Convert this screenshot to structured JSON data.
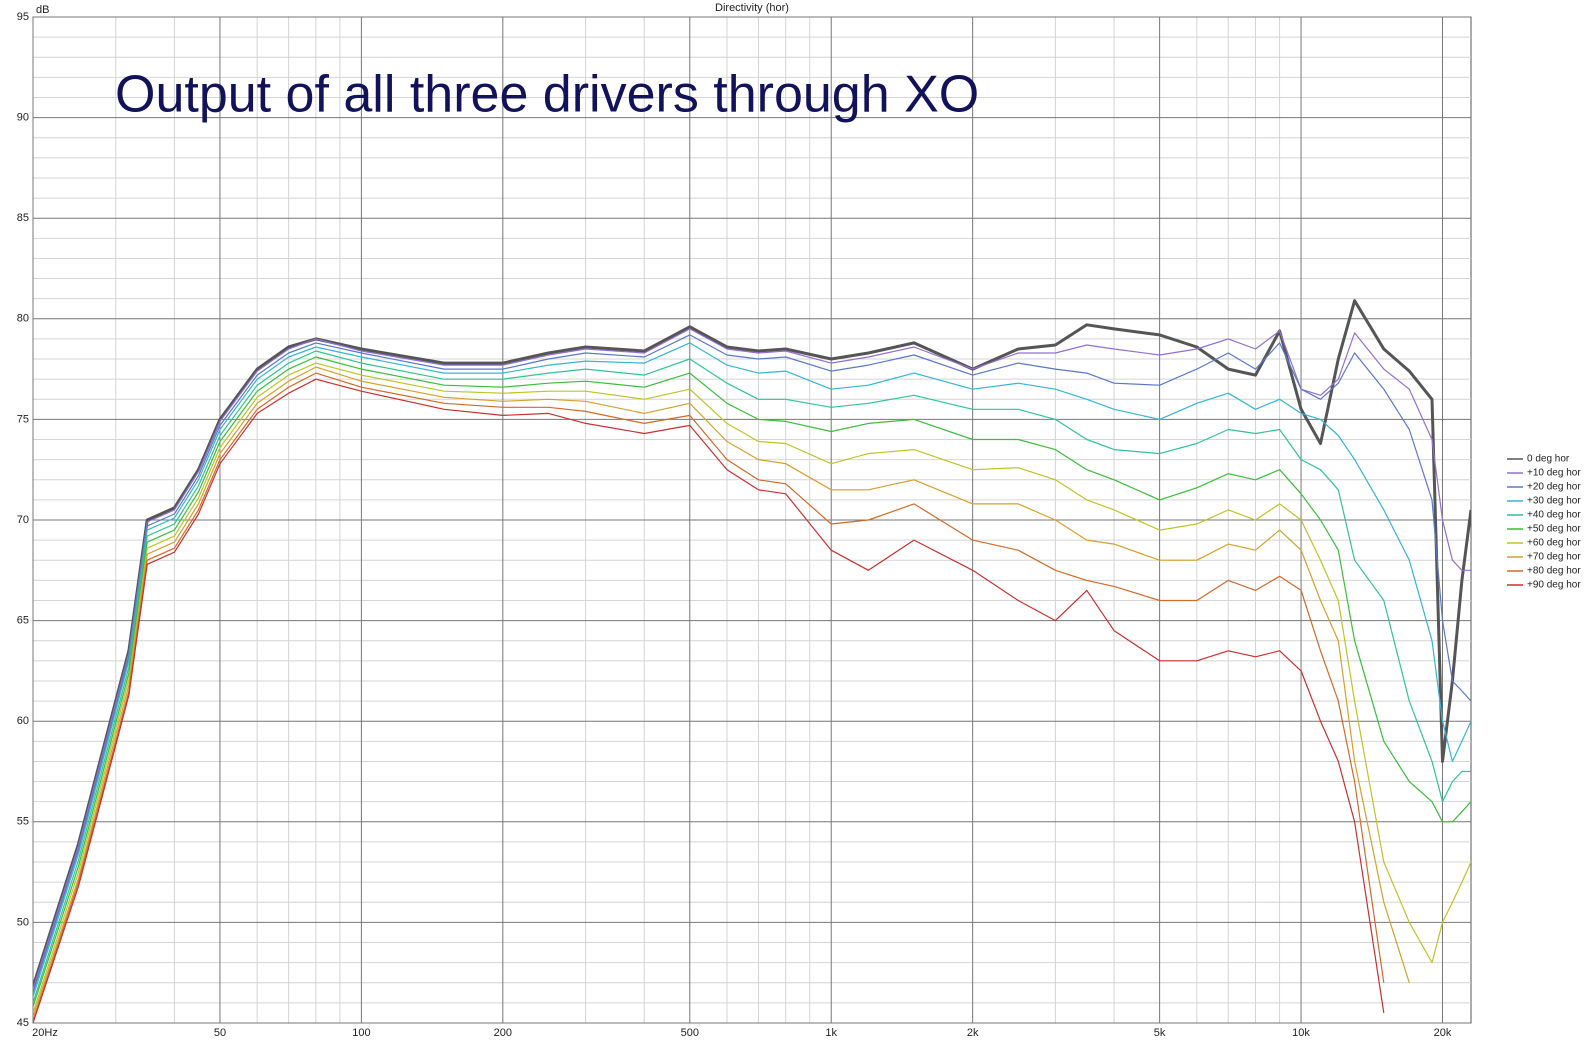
{
  "chart_data": {
    "type": "line",
    "title": "Directivity (hor)",
    "annotation": "Output of all three drivers through XO",
    "y_label": "dB",
    "xscale": "log",
    "grid": true,
    "legend": "right",
    "xlim": [
      20,
      23000
    ],
    "ylim": [
      45,
      95
    ],
    "xticks": [
      {
        "value": 20,
        "label": "20Hz"
      },
      50,
      100,
      200,
      500,
      {
        "value": 1000,
        "label": "1k"
      },
      {
        "value": 2000,
        "label": "2k"
      },
      {
        "value": 5000,
        "label": "5k"
      },
      {
        "value": 10000,
        "label": "10k"
      },
      {
        "value": 20000,
        "label": "20k"
      }
    ],
    "xminorticks": [
      30,
      40,
      60,
      70,
      80,
      90,
      300,
      400,
      600,
      700,
      800,
      900,
      3000,
      4000,
      6000,
      7000,
      8000,
      9000
    ],
    "yticks": [
      45,
      50,
      55,
      60,
      65,
      70,
      75,
      80,
      85,
      90,
      95
    ],
    "yminorticks": [
      46,
      47,
      48,
      49,
      51,
      52,
      53,
      54,
      56,
      57,
      58,
      59,
      61,
      62,
      63,
      64,
      66,
      67,
      68,
      69,
      71,
      72,
      73,
      74,
      76,
      77,
      78,
      79,
      81,
      82,
      83,
      84,
      86,
      87,
      88,
      89,
      91,
      92,
      93,
      94
    ],
    "x": [
      20,
      25,
      30,
      32,
      35,
      40,
      45,
      50,
      60,
      70,
      80,
      100,
      150,
      200,
      250,
      300,
      400,
      500,
      600,
      700,
      800,
      1000,
      1200,
      1500,
      2000,
      2500,
      3000,
      3500,
      4000,
      5000,
      6000,
      7000,
      8000,
      9000,
      10000,
      11000,
      12000,
      13000,
      15000,
      17000,
      19000,
      20000,
      21000,
      22000,
      23000
    ],
    "series": [
      {
        "name": "0 deg hor",
        "color": "#555555",
        "values": [
          46.8,
          53.9,
          61,
          63.5,
          70,
          70.6,
          72.5,
          75,
          77.5,
          78.6,
          79,
          78.5,
          77.8,
          77.8,
          78.3,
          78.6,
          78.4,
          79.6,
          78.6,
          78.4,
          78.5,
          78,
          78.3,
          78.8,
          77.5,
          78.5,
          78.7,
          79.7,
          79.5,
          79.2,
          78.6,
          77.5,
          77.2,
          79.4,
          75.5,
          73.8,
          78,
          80.9,
          78.5,
          77.4,
          76,
          58,
          62,
          67,
          70.5
        ]
      },
      {
        "name": "+10 deg hor",
        "color": "#9070d0",
        "values": [
          46.7,
          53.8,
          60.9,
          63.4,
          69.9,
          70.5,
          72.4,
          74.9,
          77.4,
          78.5,
          79,
          78.4,
          77.7,
          77.7,
          78.2,
          78.5,
          78.3,
          79.5,
          78.5,
          78.3,
          78.4,
          77.8,
          78.1,
          78.6,
          77.5,
          78.3,
          78.3,
          78.7,
          78.5,
          78.2,
          78.5,
          79,
          78.5,
          79.4,
          76.5,
          76.2,
          77,
          79.3,
          77.5,
          76.5,
          74,
          70,
          68,
          67.5,
          67.5
        ]
      },
      {
        "name": "+20 deg hor",
        "color": "#5a78c8",
        "values": [
          46.5,
          53.6,
          60.7,
          63.2,
          69.7,
          70.3,
          72.2,
          74.7,
          77.2,
          78.3,
          78.8,
          78.3,
          77.5,
          77.5,
          78,
          78.3,
          78.1,
          79.2,
          78.2,
          78,
          78.1,
          77.4,
          77.7,
          78.2,
          77.2,
          77.8,
          77.5,
          77.3,
          76.8,
          76.7,
          77.5,
          78.3,
          77.5,
          78.8,
          76.5,
          76,
          76.8,
          78.3,
          76.5,
          74.5,
          71,
          65,
          62,
          61.5,
          61
        ]
      },
      {
        "name": "+30 deg hor",
        "color": "#35b4d4",
        "values": [
          46.3,
          53.4,
          60.5,
          63,
          69.5,
          70.1,
          72,
          74.5,
          77,
          78.1,
          78.6,
          78.1,
          77.3,
          77.3,
          77.7,
          77.9,
          77.8,
          78.8,
          77.7,
          77.3,
          77.4,
          76.5,
          76.7,
          77.3,
          76.5,
          76.8,
          76.5,
          76,
          75.5,
          75,
          75.8,
          76.3,
          75.5,
          76,
          75.3,
          75,
          74.2,
          73,
          70.5,
          68,
          64,
          60,
          58,
          59,
          60
        ]
      },
      {
        "name": "+40 deg hor",
        "color": "#30c490",
        "values": [
          46,
          53.1,
          60.2,
          62.7,
          69.2,
          69.8,
          71.7,
          74.2,
          76.7,
          77.8,
          78.4,
          77.8,
          77,
          77,
          77.3,
          77.5,
          77.2,
          78,
          76.8,
          76,
          76,
          75.6,
          75.8,
          76.2,
          75.5,
          75.5,
          75,
          74,
          73.5,
          73.3,
          73.8,
          74.5,
          74.3,
          74.5,
          73,
          72.5,
          71.5,
          68,
          66,
          61,
          58,
          56,
          57,
          57.5,
          57.5
        ]
      },
      {
        "name": "+50 deg hor",
        "color": "#3cbc3c",
        "values": [
          45.8,
          52.8,
          59.9,
          62.4,
          68.9,
          69.5,
          71.4,
          73.9,
          76.4,
          77.5,
          78.1,
          77.5,
          76.7,
          76.6,
          76.8,
          76.9,
          76.6,
          77.3,
          75.8,
          75,
          74.9,
          74.4,
          74.8,
          75,
          74,
          74,
          73.5,
          72.5,
          72,
          71,
          71.6,
          72.3,
          72,
          72.5,
          71.3,
          70,
          68.5,
          64,
          59,
          57,
          56,
          55,
          55,
          55.5,
          56
        ]
      },
      {
        "name": "+60 deg hor",
        "color": "#bcc42a",
        "values": [
          45.5,
          52.5,
          59.6,
          62.1,
          68.6,
          69.2,
          71.1,
          73.6,
          76.1,
          77.2,
          77.8,
          77.2,
          76.4,
          76.3,
          76.4,
          76.4,
          76,
          76.5,
          74.8,
          73.9,
          73.8,
          72.8,
          73.3,
          73.5,
          72.5,
          72.6,
          72,
          71,
          70.5,
          69.5,
          69.8,
          70.5,
          70,
          70.8,
          70,
          68,
          66,
          61,
          53,
          50,
          48,
          50,
          51,
          52,
          53
        ]
      },
      {
        "name": "+70 deg hor",
        "color": "#d4a02c",
        "values": [
          45.3,
          52.2,
          59.3,
          61.8,
          68.3,
          68.9,
          70.8,
          73.3,
          75.8,
          76.9,
          77.6,
          76.9,
          76.1,
          75.9,
          76,
          75.9,
          75.3,
          75.8,
          73.9,
          73,
          72.8,
          71.5,
          71.5,
          72,
          70.8,
          70.8,
          70,
          69,
          68.8,
          68,
          68,
          68.8,
          68.5,
          69.5,
          68.5,
          66,
          64,
          58,
          51,
          47,
          null,
          null,
          null,
          null,
          null
        ]
      },
      {
        "name": "+80 deg hor",
        "color": "#d06a28",
        "values": [
          45.1,
          52,
          59,
          61.5,
          68,
          68.6,
          70.5,
          73,
          75.5,
          76.6,
          77.3,
          76.6,
          75.8,
          75.6,
          75.6,
          75.4,
          74.8,
          75.2,
          73,
          72,
          71.8,
          69.8,
          70,
          70.8,
          69,
          68.5,
          67.5,
          67,
          66.7,
          66,
          66,
          67,
          66.5,
          67.2,
          66.5,
          63.5,
          61,
          57,
          47,
          null,
          null,
          null,
          null,
          null,
          null
        ]
      },
      {
        "name": "+90 deg hor",
        "color": "#c83030",
        "values": [
          45,
          51.8,
          58.8,
          61.3,
          67.8,
          68.4,
          70.3,
          72.8,
          75.3,
          76.3,
          77,
          76.4,
          75.5,
          75.2,
          75.3,
          74.8,
          74.3,
          74.7,
          72.5,
          71.5,
          71.3,
          68.5,
          67.5,
          69,
          67.5,
          66,
          65,
          66.5,
          64.5,
          63,
          63,
          63.5,
          63.2,
          63.5,
          62.5,
          60,
          58,
          55,
          45.5,
          null,
          null,
          null,
          null,
          null,
          null
        ]
      }
    ]
  }
}
